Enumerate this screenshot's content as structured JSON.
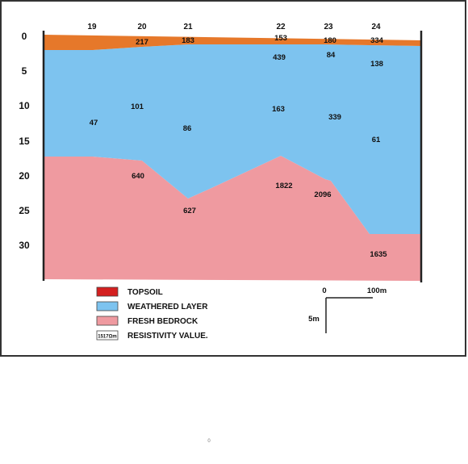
{
  "stations": [
    "19",
    "20",
    "21",
    "22",
    "23",
    "24"
  ],
  "depth_ticks": [
    "0",
    "5",
    "10",
    "15",
    "20",
    "25",
    "30"
  ],
  "resistivity": {
    "topsoil": [
      "217",
      "183",
      "153",
      "180",
      "334"
    ],
    "weathered": [
      "47",
      "101",
      "86",
      "439",
      "163",
      "84",
      "339",
      "138",
      "61"
    ],
    "bedrock": [
      "640",
      "627",
      "1822",
      "2096",
      "1635"
    ]
  },
  "legend": {
    "topsoil": "TOPSOIL",
    "weathered": "WEATHERED LAYER",
    "bedrock": "FRESH BEDROCK",
    "resistivity_sample": "1517Ωm",
    "resistivity": "RESISTIVITY VALUE."
  },
  "scale": {
    "start": "0",
    "horizontal": "100m",
    "vertical": "5m"
  },
  "footer_mark": "0",
  "colors": {
    "topsoil": "#e6782a",
    "weathered": "#7dc3ef",
    "bedrock": "#ef9aa0",
    "topsoil_legend": "#d42020",
    "frame": "#333333"
  }
}
